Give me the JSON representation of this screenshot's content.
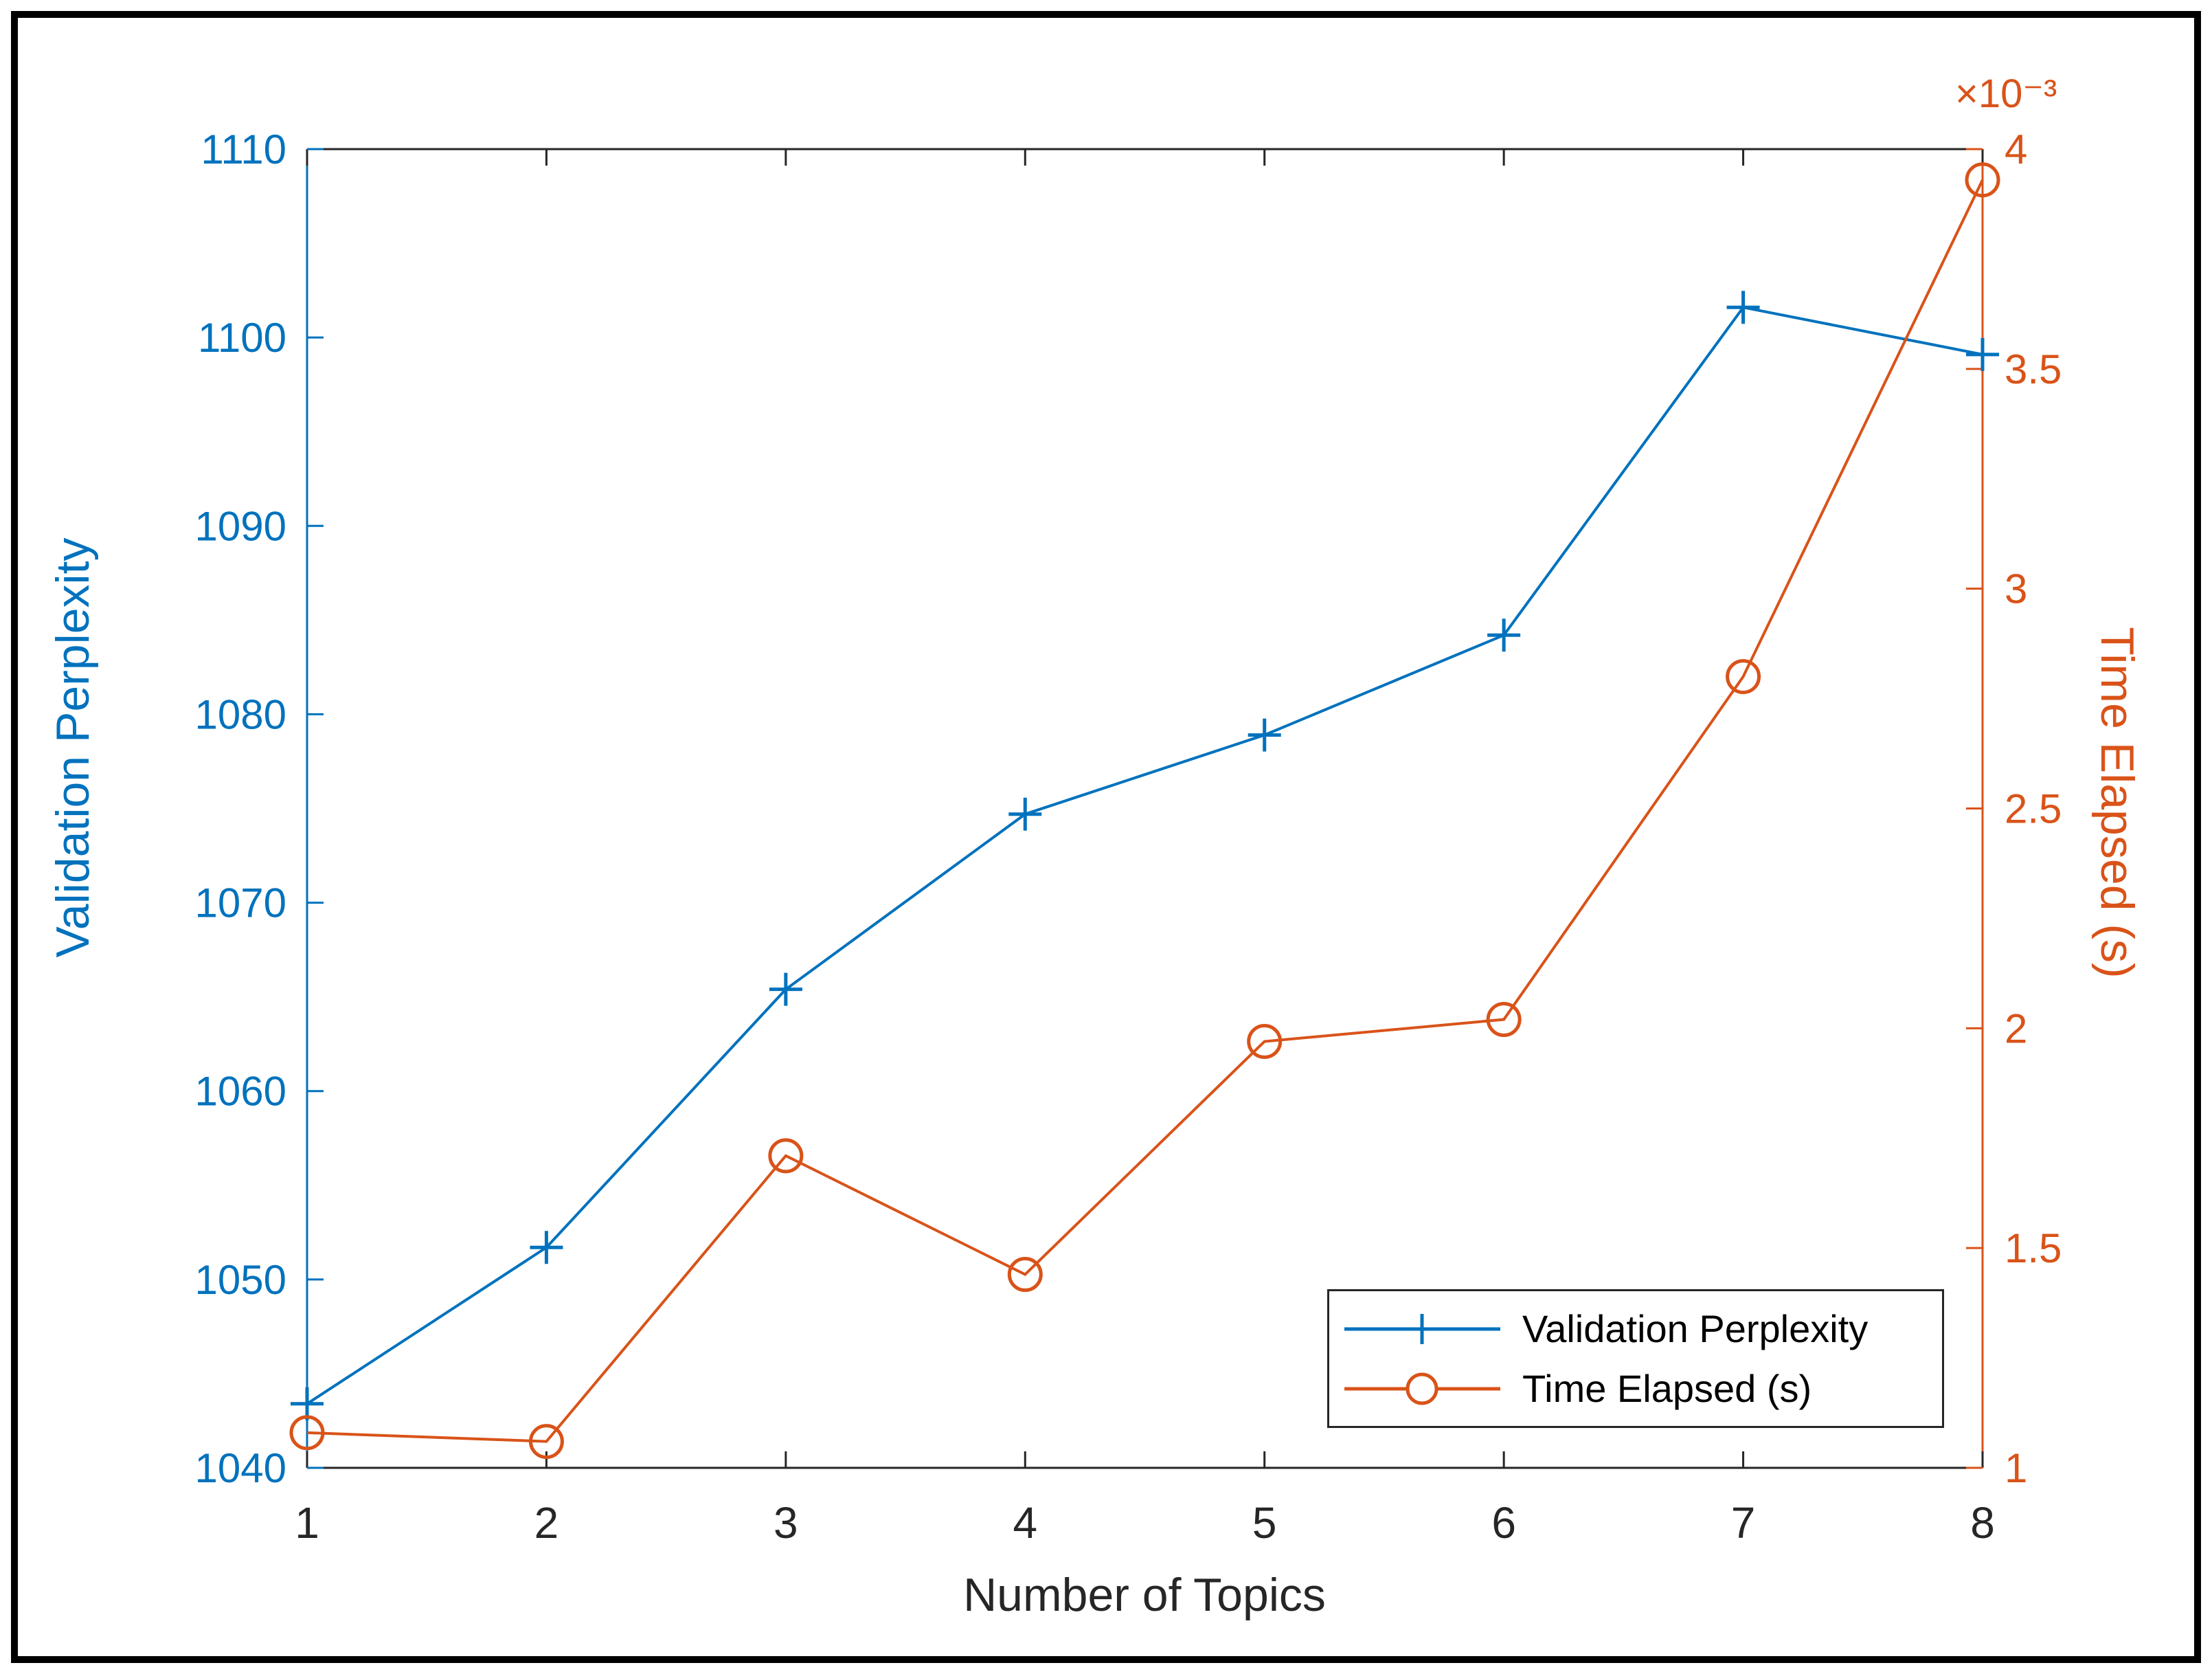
{
  "chart_data": {
    "type": "line",
    "title": "",
    "xlabel": "Number of Topics",
    "x": [
      1,
      2,
      3,
      4,
      5,
      6,
      7,
      8
    ],
    "x_tick_labels": [
      "1",
      "2",
      "3",
      "4",
      "5",
      "6",
      "7",
      "8"
    ],
    "left_axis": {
      "label": "Validation Perplexity",
      "color": "#0072BD",
      "ylim": [
        1040,
        1110
      ],
      "ticks": [
        1040,
        1050,
        1060,
        1070,
        1080,
        1090,
        1100,
        1110
      ],
      "tick_labels": [
        "1040",
        "1050",
        "1060",
        "1070",
        "1080",
        "1090",
        "1100",
        "1110"
      ]
    },
    "right_axis": {
      "label": "Time Elapsed (s)",
      "color": "#D95319",
      "ylim": [
        1,
        4
      ],
      "ticks": [
        1,
        1.5,
        2,
        2.5,
        3,
        3.5,
        4
      ],
      "tick_labels": [
        "1",
        "1.5",
        "2",
        "2.5",
        "3",
        "3.5",
        "4"
      ],
      "multiplier": "×10⁻³"
    },
    "axis_dark_color": "#262626",
    "grid": false,
    "legend_position": "bottom-right",
    "series": [
      {
        "name": "Validation Perplexity",
        "axis": "left",
        "color": "#0072BD",
        "marker": "plus",
        "values": [
          1043.4,
          1051.7,
          1065.4,
          1074.7,
          1078.9,
          1084.2,
          1101.6,
          1099.1
        ]
      },
      {
        "name": "Time Elapsed (s)",
        "axis": "right",
        "color": "#D95319",
        "marker": "circle",
        "values": [
          1.08,
          1.06,
          1.71,
          1.44,
          1.97,
          2.02,
          2.8,
          3.93
        ]
      }
    ]
  }
}
